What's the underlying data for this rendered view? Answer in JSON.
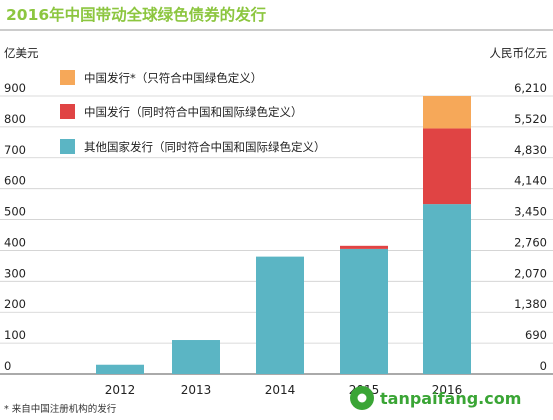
{
  "chart_data": {
    "type": "bar",
    "stacked": true,
    "title": "2016年中国带动全球绿色债券的发行",
    "ylabel_left": "亿美元",
    "ylabel_right": "人民币亿元",
    "categories": [
      "2012",
      "2013",
      "2014",
      "2015",
      "2016"
    ],
    "series": [
      {
        "name": "其他国家发行（同时符合中国和国际绿色定义）",
        "color": "#5bb5c4",
        "values": [
          30,
          110,
          380,
          405,
          550
        ]
      },
      {
        "name": "中国发行（同时符合中国和国际绿色定义）",
        "color": "#e04444",
        "values": [
          0,
          0,
          0,
          10,
          245
        ]
      },
      {
        "name": "中国发行*（只符合中国绿色定义）",
        "color": "#f6a859",
        "values": [
          0,
          0,
          0,
          0,
          105
        ]
      }
    ],
    "ylim": [
      0,
      900
    ],
    "yticks_left": [
      "0",
      "100",
      "200",
      "300",
      "400",
      "500",
      "600",
      "700",
      "800",
      "900"
    ],
    "yticks_right": [
      "0",
      "690",
      "1,380",
      "2,070",
      "2,760",
      "3,450",
      "4,140",
      "4,830",
      "5,520",
      "6,210"
    ],
    "grid": true,
    "legend": "top-left",
    "footnote": "* 来自中国注册机构的发行",
    "title_color": "#8cc63f"
  },
  "watermark": {
    "text": "tanpaifang.com",
    "color": "#3aa535"
  }
}
